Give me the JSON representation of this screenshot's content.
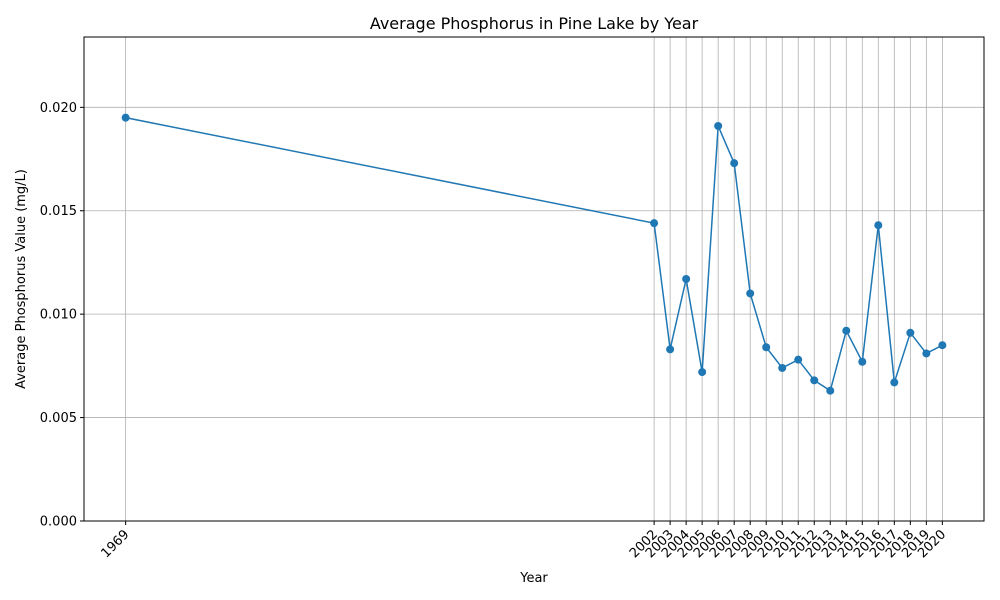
{
  "chart_data": {
    "type": "line",
    "title": "Average Phosphorus in Pine Lake by Year",
    "xlabel": "Year",
    "ylabel": "Average Phosphorus Value (mg/L)",
    "x": [
      1969,
      2002,
      2003,
      2004,
      2005,
      2006,
      2007,
      2008,
      2009,
      2010,
      2011,
      2012,
      2013,
      2014,
      2015,
      2016,
      2017,
      2018,
      2019,
      2020
    ],
    "values": [
      0.0195,
      0.0144,
      0.0083,
      0.0117,
      0.0072,
      0.0191,
      0.0173,
      0.011,
      0.0084,
      0.0074,
      0.0078,
      0.0068,
      0.0063,
      0.0092,
      0.0077,
      0.0143,
      0.0067,
      0.0091,
      0.0081,
      0.0085
    ],
    "xlim": [
      1966.4,
      2022.6
    ],
    "ylim": [
      0,
      0.0234
    ],
    "yticks": [
      0.0,
      0.005,
      0.01,
      0.015,
      0.02
    ],
    "ytick_labels": [
      "0.000",
      "0.005",
      "0.010",
      "0.015",
      "0.020"
    ],
    "grid": true,
    "legend": "none",
    "color": "#1f77b4"
  }
}
